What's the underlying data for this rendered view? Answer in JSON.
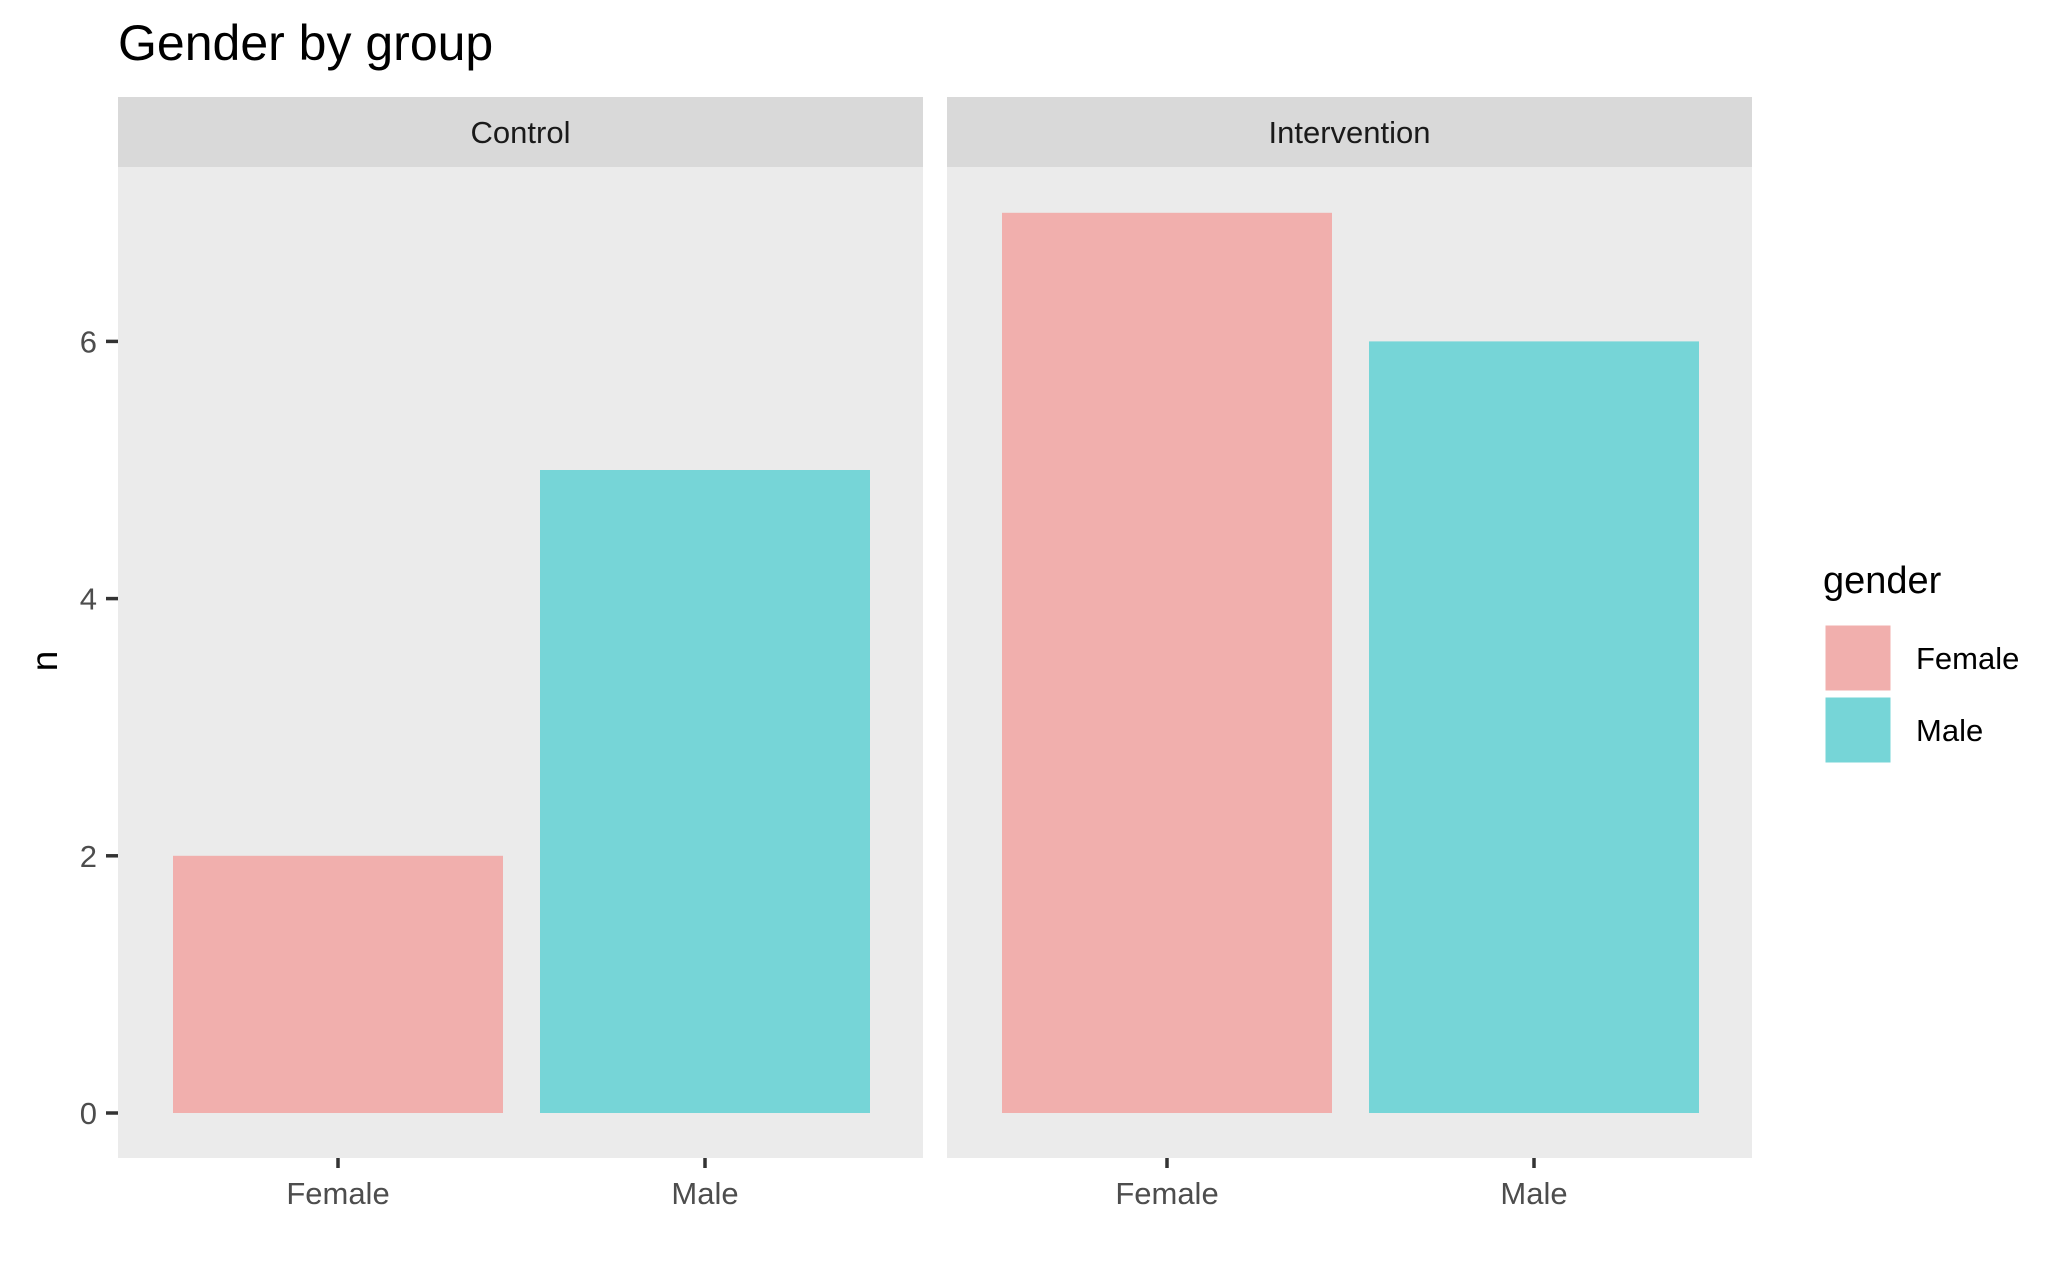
{
  "chart_data": {
    "type": "bar",
    "title": "Gender by group",
    "xlabel": "",
    "ylabel": "n",
    "ylim": [
      0,
      7
    ],
    "y_ticks": [
      0,
      2,
      4,
      6
    ],
    "grid": false,
    "facets": [
      {
        "name": "Control",
        "categories": [
          "Female",
          "Male"
        ],
        "values": [
          2,
          5
        ]
      },
      {
        "name": "Intervention",
        "categories": [
          "Female",
          "Male"
        ],
        "values": [
          7,
          6
        ]
      }
    ],
    "legend": {
      "title": "gender",
      "position": "right",
      "entries": [
        {
          "label": "Female",
          "color": "#F1AFAD"
        },
        {
          "label": "Male",
          "color": "#76D5D7"
        }
      ]
    },
    "colors": {
      "Female": "#F1AFAD",
      "Male": "#76D5D7",
      "panel_background": "#EBEBEB",
      "strip_background": "#D9D9D9"
    }
  }
}
